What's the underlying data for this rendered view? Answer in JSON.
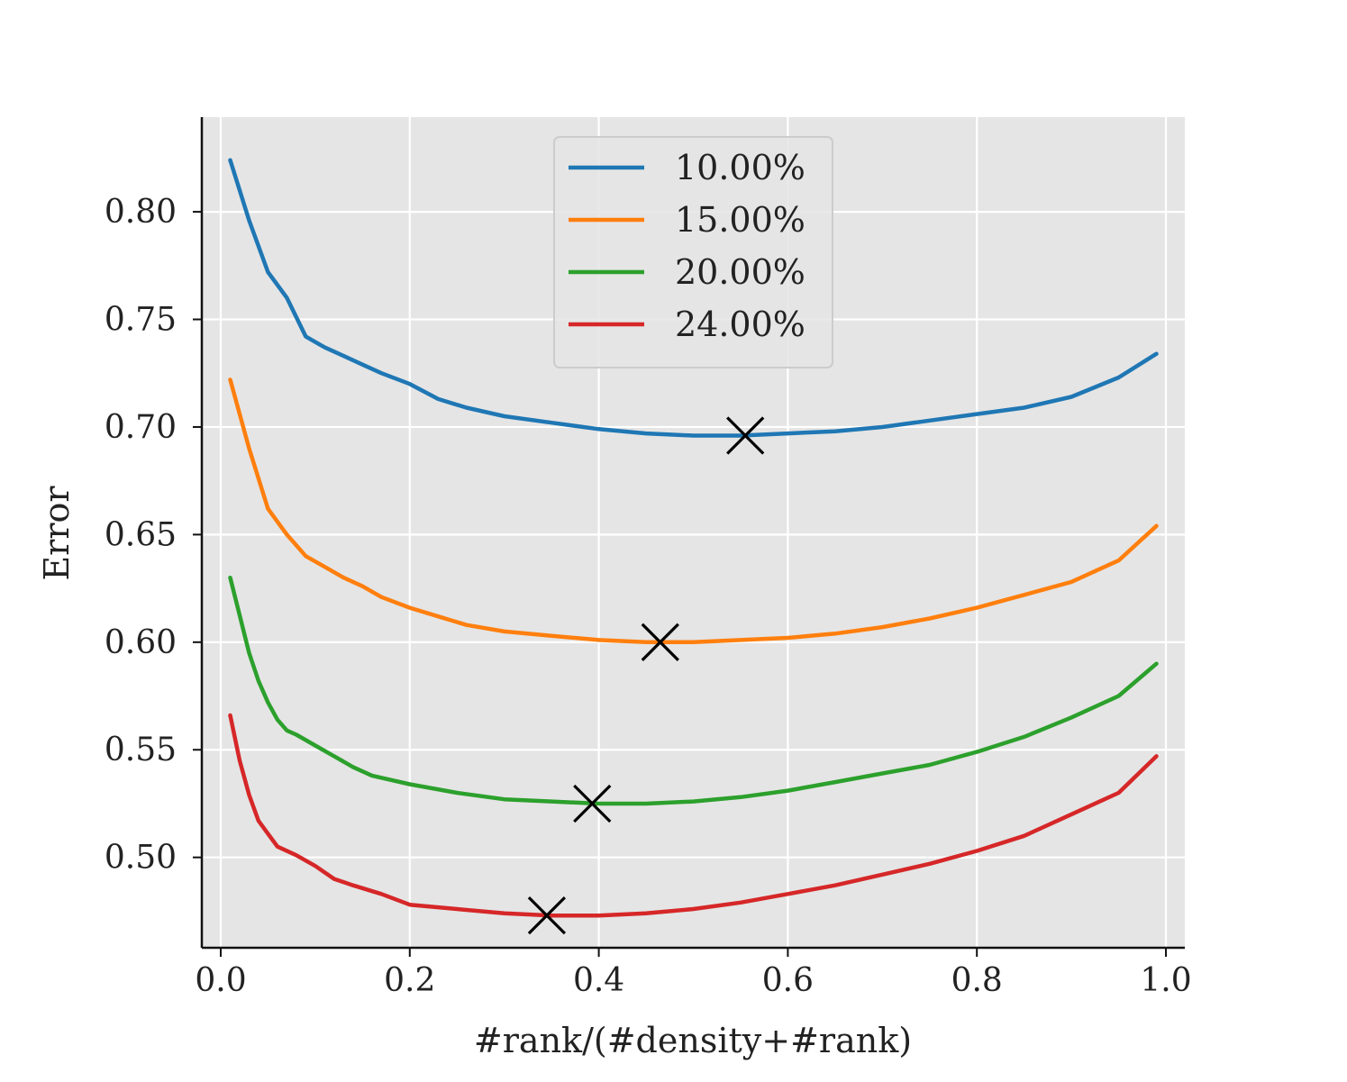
{
  "chart_data": {
    "type": "line",
    "title": "",
    "xlabel": "#rank/(#density+#rank)",
    "ylabel": "Error",
    "xlim": [
      -0.02,
      1.02
    ],
    "ylim": [
      0.458,
      0.844
    ],
    "xticks": [
      0.0,
      0.2,
      0.4,
      0.6,
      0.8,
      1.0
    ],
    "xtick_labels": [
      "0.0",
      "0.2",
      "0.4",
      "0.6",
      "0.8",
      "1.0"
    ],
    "yticks": [
      0.5,
      0.55,
      0.6,
      0.65,
      0.7,
      0.75,
      0.8
    ],
    "ytick_labels": [
      "0.50",
      "0.55",
      "0.60",
      "0.65",
      "0.70",
      "0.75",
      "0.80"
    ],
    "grid": true,
    "legend_position": "upper-center",
    "background_color": "#e5e5e5",
    "series": [
      {
        "name": "10.00%",
        "color": "#1f77b4",
        "x": [
          0.01,
          0.03,
          0.05,
          0.07,
          0.09,
          0.11,
          0.13,
          0.15,
          0.17,
          0.2,
          0.23,
          0.26,
          0.3,
          0.35,
          0.4,
          0.45,
          0.5,
          0.55,
          0.6,
          0.65,
          0.7,
          0.75,
          0.8,
          0.85,
          0.9,
          0.95,
          0.99
        ],
        "y": [
          0.824,
          0.796,
          0.772,
          0.76,
          0.742,
          0.737,
          0.733,
          0.729,
          0.725,
          0.72,
          0.713,
          0.709,
          0.705,
          0.702,
          0.699,
          0.697,
          0.696,
          0.696,
          0.697,
          0.698,
          0.7,
          0.703,
          0.706,
          0.709,
          0.714,
          0.723,
          0.734
        ],
        "marker": {
          "x": 0.555,
          "y": 0.696,
          "symbol": "x"
        }
      },
      {
        "name": "15.00%",
        "color": "#ff7f0e",
        "x": [
          0.01,
          0.03,
          0.05,
          0.07,
          0.09,
          0.11,
          0.13,
          0.15,
          0.17,
          0.2,
          0.23,
          0.26,
          0.3,
          0.35,
          0.4,
          0.45,
          0.5,
          0.55,
          0.6,
          0.65,
          0.7,
          0.75,
          0.8,
          0.85,
          0.9,
          0.95,
          0.99
        ],
        "y": [
          0.722,
          0.69,
          0.662,
          0.65,
          0.64,
          0.635,
          0.63,
          0.626,
          0.621,
          0.616,
          0.612,
          0.608,
          0.605,
          0.603,
          0.601,
          0.6,
          0.6,
          0.601,
          0.602,
          0.604,
          0.607,
          0.611,
          0.616,
          0.622,
          0.628,
          0.638,
          0.654
        ],
        "marker": {
          "x": 0.465,
          "y": 0.6,
          "symbol": "x"
        }
      },
      {
        "name": "20.00%",
        "color": "#2ca02c",
        "x": [
          0.01,
          0.03,
          0.04,
          0.05,
          0.06,
          0.07,
          0.08,
          0.1,
          0.12,
          0.14,
          0.16,
          0.2,
          0.25,
          0.3,
          0.35,
          0.4,
          0.45,
          0.5,
          0.55,
          0.6,
          0.65,
          0.7,
          0.75,
          0.8,
          0.85,
          0.9,
          0.95,
          0.99
        ],
        "y": [
          0.63,
          0.595,
          0.582,
          0.572,
          0.564,
          0.559,
          0.557,
          0.552,
          0.547,
          0.542,
          0.538,
          0.534,
          0.53,
          0.527,
          0.526,
          0.525,
          0.525,
          0.526,
          0.528,
          0.531,
          0.535,
          0.539,
          0.543,
          0.549,
          0.556,
          0.565,
          0.575,
          0.59
        ],
        "marker": {
          "x": 0.393,
          "y": 0.525,
          "symbol": "x"
        }
      },
      {
        "name": "24.00%",
        "color": "#d62728",
        "x": [
          0.01,
          0.02,
          0.03,
          0.04,
          0.05,
          0.06,
          0.08,
          0.1,
          0.12,
          0.14,
          0.17,
          0.2,
          0.25,
          0.3,
          0.35,
          0.4,
          0.45,
          0.5,
          0.55,
          0.6,
          0.65,
          0.7,
          0.75,
          0.8,
          0.85,
          0.9,
          0.95,
          0.99
        ],
        "y": [
          0.566,
          0.545,
          0.529,
          0.517,
          0.511,
          0.505,
          0.501,
          0.496,
          0.49,
          0.487,
          0.483,
          0.478,
          0.476,
          0.474,
          0.473,
          0.473,
          0.474,
          0.476,
          0.479,
          0.483,
          0.487,
          0.492,
          0.497,
          0.503,
          0.51,
          0.52,
          0.53,
          0.547
        ],
        "marker": {
          "x": 0.345,
          "y": 0.473,
          "symbol": "x"
        }
      }
    ]
  }
}
